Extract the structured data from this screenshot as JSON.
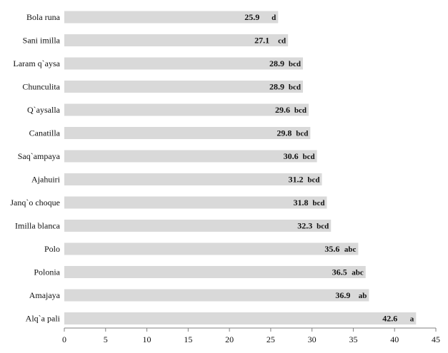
{
  "chart_data": {
    "type": "bar",
    "orientation": "horizontal",
    "categories": [
      "Bola runa",
      "Sani imilla",
      "Laram q`aysa",
      "Chunculita",
      "Q`aysalla",
      "Canatilla",
      "Saq`ampaya",
      "Ajahuiri",
      "Janq`o choque",
      "Imilla blanca",
      "Polo",
      "Polonia",
      "Amajaya",
      "Alq`a pali"
    ],
    "values": [
      25.9,
      27.1,
      28.9,
      28.9,
      29.6,
      29.8,
      30.6,
      31.2,
      31.8,
      32.3,
      35.6,
      36.5,
      36.9,
      42.6
    ],
    "value_labels": [
      "25.9",
      "27.1",
      "28.9",
      "28.9",
      "29.6",
      "29.8",
      "30.6",
      "31.2",
      "31.8",
      "32.3",
      "35.6",
      "36.5",
      "36.9",
      "42.6"
    ],
    "groups": [
      "d",
      "cd",
      "bcd",
      "bcd",
      "bcd",
      "bcd",
      "bcd",
      "bcd",
      "bcd",
      "bcd",
      "abc",
      "abc",
      "ab",
      "a"
    ],
    "xlim": [
      0,
      45
    ],
    "xticks": [
      "0",
      "5",
      "10",
      "15",
      "20",
      "25",
      "30",
      "35",
      "40",
      "45"
    ],
    "title": "",
    "xlabel": "",
    "ylabel": "",
    "grid": false,
    "legend": "none",
    "bar_color": "#d9d9d9",
    "axis_color": "#808080",
    "text_color": "#111111"
  }
}
